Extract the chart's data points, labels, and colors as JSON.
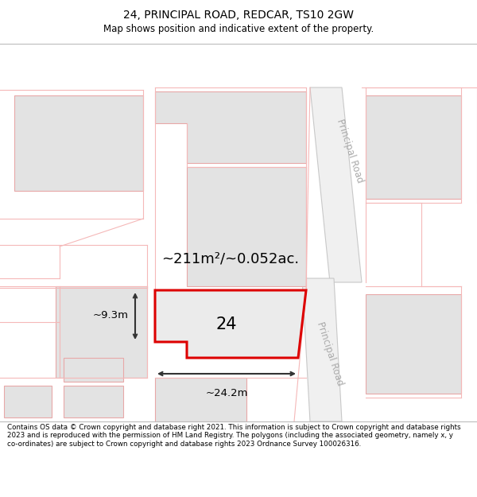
{
  "title": "24, PRINCIPAL ROAD, REDCAR, TS10 2GW",
  "subtitle": "Map shows position and indicative extent of the property.",
  "footer": "Contains OS data © Crown copyright and database right 2021. This information is subject to Crown copyright and database rights 2023 and is reproduced with the permission of HM Land Registry. The polygons (including the associated geometry, namely x, y co-ordinates) are subject to Crown copyright and database rights 2023 Ordnance Survey 100026316.",
  "road_label_top": "Principal Road",
  "road_label_bottom": "Principal Road",
  "area_text": "~211m²/~0.052ac.",
  "number_text": "24",
  "width_text": "~24.2m",
  "height_text": "~9.3m",
  "road_color": "#f5b8b8",
  "building_fill": "#e3e3e3",
  "building_edge": "#e8a8a8",
  "road_fill": "#f0f0f0",
  "map_bg": "#ffffff",
  "title_fontsize": 10,
  "subtitle_fontsize": 8.5,
  "footer_fontsize": 6.3
}
